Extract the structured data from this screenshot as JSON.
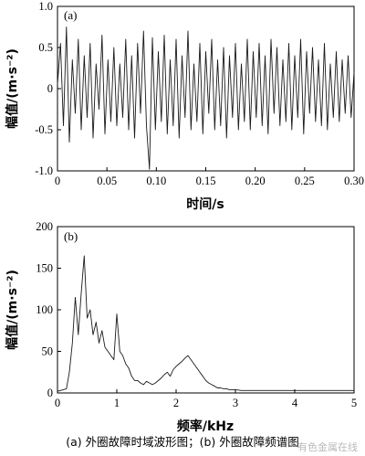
{
  "caption": "(a) 外圈故障时域波形图；(b) 外圈故障频谱图",
  "watermark": "有色金属在线",
  "chart_data": [
    {
      "type": "line",
      "panel_label": "(a)",
      "xlabel": "时间/s",
      "ylabel": "幅值/(m·s⁻²)",
      "xlim": [
        0,
        0.3
      ],
      "ylim": [
        -1.0,
        1.0
      ],
      "x_ticks": [
        "0",
        "0.05",
        "0.10",
        "0.15",
        "0.20",
        "0.25",
        "0.30"
      ],
      "y_ticks": [
        "1.0",
        "0.5",
        "0",
        "-0.5",
        "-1.0"
      ],
      "x": [
        0.0,
        0.003,
        0.006,
        0.009,
        0.012,
        0.015,
        0.018,
        0.021,
        0.024,
        0.027,
        0.03,
        0.033,
        0.036,
        0.039,
        0.042,
        0.045,
        0.048,
        0.051,
        0.054,
        0.057,
        0.06,
        0.063,
        0.066,
        0.069,
        0.072,
        0.075,
        0.078,
        0.081,
        0.084,
        0.087,
        0.09,
        0.093,
        0.096,
        0.099,
        0.102,
        0.105,
        0.108,
        0.111,
        0.114,
        0.117,
        0.12,
        0.123,
        0.126,
        0.129,
        0.132,
        0.135,
        0.138,
        0.141,
        0.144,
        0.147,
        0.15,
        0.153,
        0.156,
        0.159,
        0.162,
        0.165,
        0.168,
        0.171,
        0.174,
        0.177,
        0.18,
        0.183,
        0.186,
        0.189,
        0.192,
        0.195,
        0.198,
        0.201,
        0.204,
        0.207,
        0.21,
        0.213,
        0.216,
        0.219,
        0.222,
        0.225,
        0.228,
        0.231,
        0.234,
        0.237,
        0.24,
        0.243,
        0.246,
        0.249,
        0.252,
        0.255,
        0.258,
        0.261,
        0.264,
        0.267,
        0.27,
        0.273,
        0.276,
        0.279,
        0.282,
        0.285,
        0.288,
        0.291,
        0.294,
        0.297,
        0.3
      ],
      "values": [
        0.05,
        0.55,
        -0.45,
        0.75,
        -0.65,
        0.35,
        -0.3,
        0.6,
        -0.5,
        0.4,
        -0.35,
        0.55,
        -0.6,
        0.3,
        -0.25,
        0.65,
        -0.55,
        0.35,
        -0.4,
        0.5,
        -0.45,
        0.3,
        -0.35,
        0.6,
        -0.5,
        0.4,
        -0.6,
        0.55,
        -0.3,
        0.7,
        -0.45,
        -0.98,
        0.62,
        -0.5,
        0.45,
        -0.4,
        0.65,
        -0.55,
        0.35,
        -0.45,
        0.6,
        -0.6,
        0.4,
        -0.35,
        0.7,
        -0.5,
        0.3,
        -0.4,
        0.55,
        -0.55,
        0.45,
        -0.3,
        0.6,
        -0.5,
        0.35,
        -0.45,
        0.5,
        -0.6,
        0.4,
        -0.35,
        0.55,
        -0.5,
        0.3,
        -0.4,
        0.6,
        -0.5,
        0.45,
        -0.35,
        0.55,
        -0.45,
        0.4,
        -0.55,
        0.6,
        -0.3,
        0.5,
        -0.45,
        0.35,
        -0.4,
        0.55,
        -0.5,
        0.4,
        -0.35,
        0.6,
        -0.55,
        0.45,
        -0.3,
        0.5,
        -0.4,
        0.35,
        -0.45,
        0.55,
        -0.5,
        0.3,
        -0.35,
        0.45,
        -0.4,
        0.35,
        -0.3,
        0.4,
        -0.35,
        0.2
      ]
    },
    {
      "type": "line",
      "panel_label": "(b)",
      "xlabel": "频率/kHz",
      "ylabel": "幅值/(m·s⁻²)",
      "xlim": [
        0,
        5
      ],
      "ylim": [
        0,
        200
      ],
      "x_ticks": [
        "0",
        "1",
        "2",
        "3",
        "4",
        "5"
      ],
      "y_ticks": [
        "200",
        "150",
        "100",
        "50",
        "0"
      ],
      "x": [
        0.0,
        0.05,
        0.1,
        0.15,
        0.2,
        0.25,
        0.3,
        0.35,
        0.4,
        0.45,
        0.5,
        0.55,
        0.6,
        0.65,
        0.7,
        0.75,
        0.8,
        0.85,
        0.9,
        0.95,
        1.0,
        1.05,
        1.1,
        1.15,
        1.2,
        1.25,
        1.3,
        1.35,
        1.4,
        1.45,
        1.5,
        1.55,
        1.6,
        1.65,
        1.7,
        1.75,
        1.8,
        1.85,
        1.9,
        1.95,
        2.0,
        2.05,
        2.1,
        2.15,
        2.2,
        2.25,
        2.3,
        2.35,
        2.4,
        2.45,
        2.5,
        2.55,
        2.6,
        2.65,
        2.7,
        2.75,
        2.8,
        2.85,
        2.9,
        2.95,
        3.0,
        3.1,
        3.2,
        3.3,
        3.4,
        3.5,
        3.6,
        3.7,
        3.8,
        3.9,
        4.0,
        4.1,
        4.2,
        4.3,
        4.4,
        4.5,
        4.6,
        4.7,
        4.8,
        4.9,
        5.0
      ],
      "values": [
        2,
        3,
        4,
        5,
        25,
        60,
        115,
        70,
        120,
        165,
        90,
        100,
        70,
        85,
        60,
        75,
        55,
        50,
        45,
        40,
        95,
        50,
        45,
        35,
        30,
        20,
        15,
        15,
        12,
        10,
        14,
        12,
        10,
        12,
        15,
        18,
        22,
        25,
        20,
        28,
        32,
        35,
        38,
        42,
        45,
        40,
        35,
        30,
        25,
        20,
        15,
        12,
        10,
        8,
        6,
        6,
        5,
        5,
        4,
        4,
        4,
        3,
        3,
        3,
        3,
        3,
        3,
        3,
        3,
        3,
        3,
        3,
        3,
        3,
        3,
        3,
        3,
        3,
        3,
        3,
        3
      ]
    }
  ]
}
